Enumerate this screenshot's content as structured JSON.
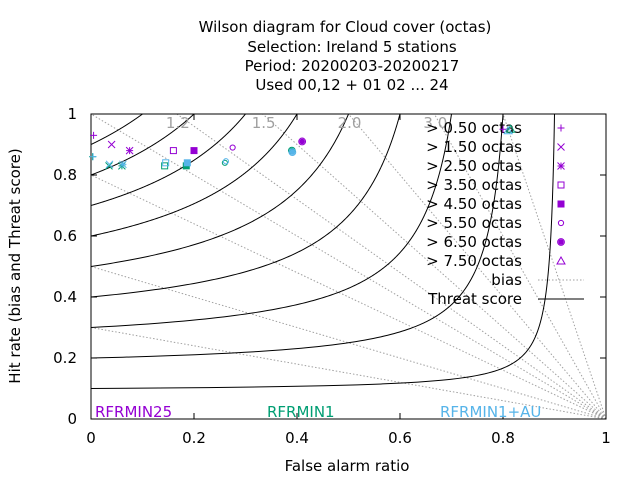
{
  "chart_data": {
    "type": "scatter",
    "title_lines": [
      "Wilson diagram  for Cloud cover (octas)",
      "Selection: Ireland      5 stations",
      "Period: 20200203-20200217",
      "Used  00,12  + 01 02 ... 24"
    ],
    "xlabel": "False alarm ratio",
    "ylabel": "Hit rate (bias and Threat score)",
    "xlim": [
      0,
      1
    ],
    "ylim": [
      0,
      1
    ],
    "x_ticks": [
      "0",
      "0.2",
      "0.4",
      "0.6",
      "0.8",
      "1"
    ],
    "y_ticks": [
      "0",
      "0.2",
      "0.4",
      "0.6",
      "0.8",
      "1"
    ],
    "bias_values": [
      0.3,
      0.5,
      0.8,
      1.0,
      1.2,
      1.5,
      2.0,
      3.0,
      5.0
    ],
    "bias_labels": [
      "1.2",
      "1.5",
      "2.0",
      "3.0"
    ],
    "threat_values": [
      0.1,
      0.2,
      0.3,
      0.4,
      0.5,
      0.6,
      0.7,
      0.8,
      0.9
    ],
    "legend": {
      "entries": [
        "> 0.50 octas",
        "> 1.50 octas",
        "> 2.50 octas",
        "> 3.50 octas",
        "> 4.50 octas",
        "> 5.50 octas",
        "> 6.50 octas",
        "> 7.50 octas"
      ],
      "bias_label": "bias",
      "threat_label": "Threat score",
      "placement": "top-right"
    },
    "models": [
      {
        "name": "RFRMIN25",
        "color": "#9400d3"
      },
      {
        "name": "RFRMIN1",
        "color": "#009e73"
      },
      {
        "name": "RFRMIN1+AU",
        "color": "#56b4e9"
      }
    ],
    "series": [
      {
        "model": "RFRMIN25",
        "marker": "plus",
        "points": [
          [
            0.005,
            0.93
          ],
          [
            0.8,
            0.95
          ]
        ]
      },
      {
        "model": "RFRMIN25",
        "marker": "cross",
        "points": [
          [
            0.04,
            0.9
          ]
        ]
      },
      {
        "model": "RFRMIN25",
        "marker": "asterisk",
        "points": [
          [
            0.075,
            0.88
          ]
        ]
      },
      {
        "model": "RFRMIN25",
        "marker": "square",
        "points": [
          [
            0.16,
            0.88
          ]
        ]
      },
      {
        "model": "RFRMIN25",
        "marker": "filled-square",
        "points": [
          [
            0.2,
            0.88
          ]
        ]
      },
      {
        "model": "RFRMIN25",
        "marker": "circle",
        "points": [
          [
            0.275,
            0.89
          ]
        ]
      },
      {
        "model": "RFRMIN25",
        "marker": "filled-circle",
        "points": [
          [
            0.41,
            0.91
          ]
        ]
      },
      {
        "model": "RFRMIN1",
        "marker": "plus",
        "points": [
          [
            0.003,
            0.86
          ]
        ]
      },
      {
        "model": "RFRMIN1",
        "marker": "cross",
        "points": [
          [
            0.035,
            0.83
          ]
        ]
      },
      {
        "model": "RFRMIN1",
        "marker": "asterisk",
        "points": [
          [
            0.06,
            0.83
          ]
        ]
      },
      {
        "model": "RFRMIN1",
        "marker": "square",
        "points": [
          [
            0.143,
            0.83
          ]
        ]
      },
      {
        "model": "RFRMIN1",
        "marker": "filled-square",
        "points": [
          [
            0.185,
            0.83
          ]
        ]
      },
      {
        "model": "RFRMIN1",
        "marker": "circle",
        "points": [
          [
            0.26,
            0.84
          ]
        ]
      },
      {
        "model": "RFRMIN1",
        "marker": "filled-circle",
        "points": [
          [
            0.39,
            0.88
          ]
        ]
      },
      {
        "model": "RFRMIN1",
        "marker": "triangle",
        "points": [
          [
            0.815,
            0.95
          ]
        ]
      },
      {
        "model": "RFRMIN1+AU",
        "marker": "plus",
        "points": [
          [
            0.004,
            0.86
          ]
        ]
      },
      {
        "model": "RFRMIN1+AU",
        "marker": "cross",
        "points": [
          [
            0.036,
            0.835
          ]
        ]
      },
      {
        "model": "RFRMIN1+AU",
        "marker": "asterisk",
        "points": [
          [
            0.062,
            0.835
          ]
        ]
      },
      {
        "model": "RFRMIN1+AU",
        "marker": "square",
        "points": [
          [
            0.145,
            0.84
          ]
        ]
      },
      {
        "model": "RFRMIN1+AU",
        "marker": "filled-square",
        "points": [
          [
            0.187,
            0.84
          ]
        ]
      },
      {
        "model": "RFRMIN1+AU",
        "marker": "circle",
        "points": [
          [
            0.262,
            0.845
          ]
        ]
      },
      {
        "model": "RFRMIN1+AU",
        "marker": "filled-circle",
        "points": [
          [
            0.391,
            0.875
          ]
        ]
      },
      {
        "model": "RFRMIN1+AU",
        "marker": "triangle",
        "points": [
          [
            0.81,
            0.945
          ]
        ]
      }
    ],
    "grid": false
  }
}
